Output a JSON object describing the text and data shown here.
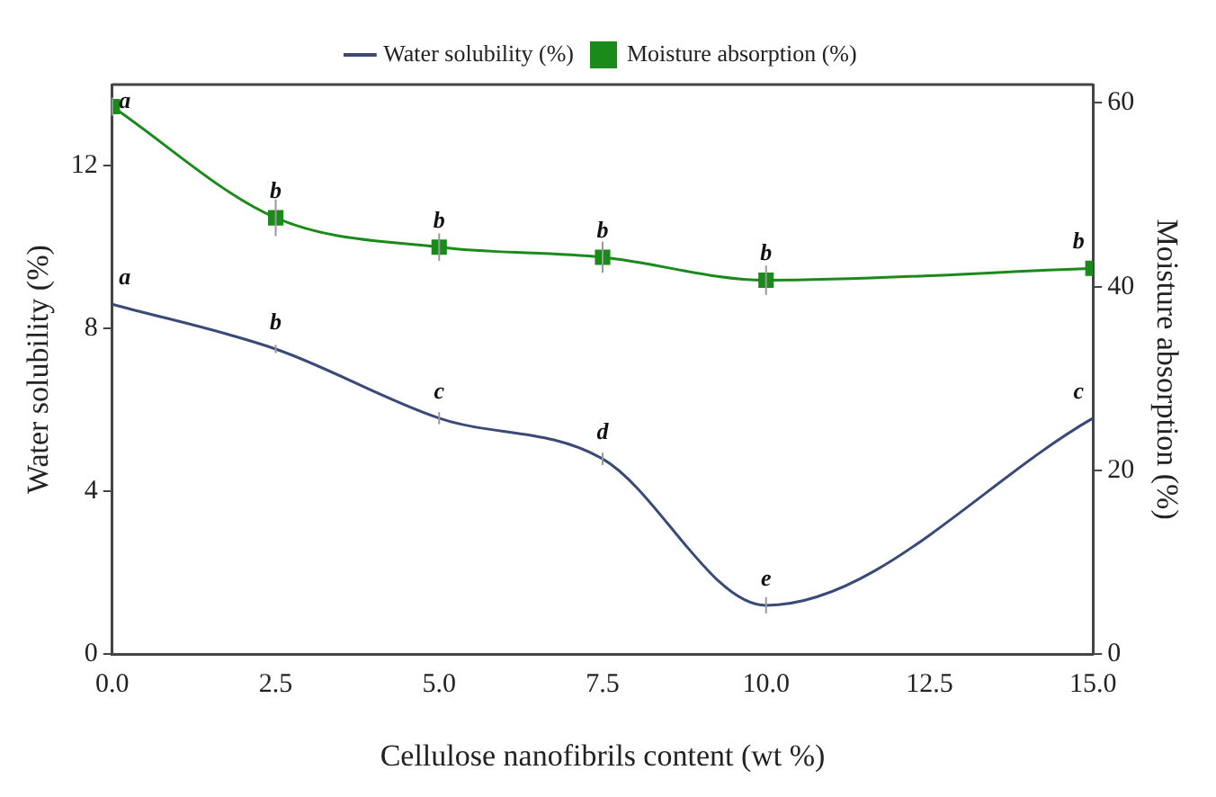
{
  "chart_data": {
    "type": "line",
    "xlabel": "Cellulose nanofibrils content (wt %)",
    "ylabel": "Water solubility (%)",
    "y2label": "Moisture absorption (%)",
    "x": [
      0,
      2.5,
      5,
      7.5,
      10,
      15
    ],
    "xlim": [
      0,
      15
    ],
    "xticks": [
      {
        "value": 0,
        "label": "0.0"
      },
      {
        "value": 2.5,
        "label": "2.5"
      },
      {
        "value": 5,
        "label": "5.0"
      },
      {
        "value": 7.5,
        "label": "7.5"
      },
      {
        "value": 10,
        "label": "10.0"
      },
      {
        "value": 12.5,
        "label": "12.5"
      },
      {
        "value": 15,
        "label": "15.0"
      }
    ],
    "ylim": [
      0,
      14
    ],
    "yticks": [
      0,
      4,
      8,
      12
    ],
    "y2lim": [
      0,
      62
    ],
    "y2ticks": [
      0,
      20,
      40,
      60
    ],
    "series": [
      {
        "name": "Water solubility (%)",
        "color": "#3a4a78",
        "marker": "none",
        "values": [
          8.6,
          7.5,
          5.8,
          4.8,
          1.2,
          5.8
        ],
        "errors": [
          null,
          0.1,
          0.15,
          0.15,
          0.2,
          null
        ]
      },
      {
        "name": "Moisture absorption (%)",
        "color": "#1a8a1a",
        "marker": "square",
        "axis": "y2",
        "values": [
          59.6,
          47.5,
          44.3,
          43.2,
          40.7,
          42.0
        ],
        "errors": [
          1,
          2,
          1.5,
          1.7,
          1.6,
          null
        ]
      }
    ],
    "annotations": [
      {
        "text": "a",
        "x": 0,
        "y": 8.6
      },
      {
        "text": "b",
        "x": 2.5,
        "y": 7.5
      },
      {
        "text": "c",
        "x": 5,
        "y": 5.8
      },
      {
        "text": "d",
        "x": 7.5,
        "y": 4.8
      },
      {
        "text": "e",
        "x": 10,
        "y": 1.2
      },
      {
        "text": "c",
        "x": 15,
        "y": 5.8
      },
      {
        "text": "a",
        "x": 0,
        "y": 13.46
      },
      {
        "text": "b",
        "x": 2.5,
        "y": 10.73
      },
      {
        "text": "b",
        "x": 5,
        "y": 10.0
      },
      {
        "text": "b",
        "x": 7.5,
        "y": 9.75
      },
      {
        "text": "b",
        "x": 10,
        "y": 9.19
      },
      {
        "text": "b",
        "x": 15,
        "y": 9.48
      }
    ],
    "legend": "top",
    "grid": false,
    "line_style": "solid"
  }
}
